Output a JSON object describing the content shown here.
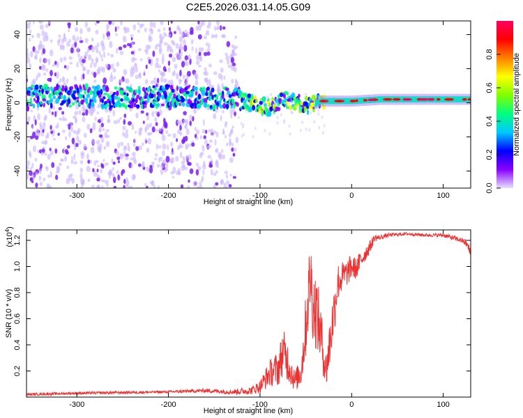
{
  "title": "C2E5.2026.031.14.05.G09",
  "chart_data": [
    {
      "type": "heatmap",
      "name": "spectrogram",
      "xlabel": "Height of straight line (km)",
      "ylabel": "Frequency (Hz)",
      "xlim": [
        -355,
        130
      ],
      "ylim": [
        -50,
        48
      ],
      "xticks": [
        -300,
        -200,
        -100,
        0,
        100
      ],
      "xtick_labels": [
        "-300",
        "-200",
        "-100",
        "0",
        "100"
      ],
      "yticks": [
        -40,
        -20,
        0,
        20,
        40
      ],
      "ytick_labels": [
        "-40",
        "-20",
        "0",
        "20",
        "40"
      ],
      "ridge": [
        {
          "x": -350,
          "freq": 4
        },
        {
          "x": -300,
          "freq": 4
        },
        {
          "x": -250,
          "freq": 3
        },
        {
          "x": -200,
          "freq": 4
        },
        {
          "x": -150,
          "freq": 2
        },
        {
          "x": -130,
          "freq": 3
        },
        {
          "x": -110,
          "freq": 0
        },
        {
          "x": -90,
          "freq": -3
        },
        {
          "x": -75,
          "freq": 2
        },
        {
          "x": -60,
          "freq": 0
        },
        {
          "x": -45,
          "freq": -2
        },
        {
          "x": -35,
          "freq": 1
        },
        {
          "x": -20,
          "freq": 1
        },
        {
          "x": 0,
          "freq": 1
        },
        {
          "x": 30,
          "freq": 2
        },
        {
          "x": 60,
          "freq": 2
        },
        {
          "x": 90,
          "freq": 2
        },
        {
          "x": 130,
          "freq": 2
        }
      ],
      "noise_extent": [
        -355,
        -125
      ]
    },
    {
      "type": "colorbar",
      "label": "Normalized spectral amplitude",
      "range": [
        0,
        1
      ],
      "ticks": [
        0.0,
        0.2,
        0.4,
        0.6,
        0.8
      ],
      "tick_labels": [
        "0.0",
        "0.2",
        "0.4",
        "0.6",
        "0.8"
      ],
      "colors": [
        "#e8e0ff",
        "#8a00ff",
        "#0000ff",
        "#00c8ff",
        "#00ff80",
        "#80ff00",
        "#ffff00",
        "#ff8000",
        "#ff0000",
        "#ff0060"
      ]
    },
    {
      "type": "line",
      "name": "snr",
      "color": "#ee3030",
      "xlabel": "Height of straight line (km)",
      "ylabel": "SNR (10 * v/v)",
      "scale_label": "(x10",
      "scale_exp": "4",
      "scale_close": ")",
      "xlim": [
        -355,
        130
      ],
      "ylim": [
        0,
        1.28
      ],
      "xticks": [
        -300,
        -200,
        -100,
        0,
        100
      ],
      "xtick_labels": [
        "-300",
        "-200",
        "-100",
        "0",
        "100"
      ],
      "yticks": [
        0.2,
        0.4,
        0.6,
        0.8,
        1.0,
        1.2
      ],
      "ytick_labels": [
        "0.2",
        "0.4",
        "0.6",
        "0.8",
        "1.0",
        "1.2"
      ],
      "x": [
        -355,
        -300,
        -250,
        -200,
        -160,
        -130,
        -110,
        -100,
        -90,
        -80,
        -75,
        -70,
        -62,
        -55,
        -50,
        -45,
        -42,
        -38,
        -33,
        -28,
        -25,
        -20,
        -15,
        -10,
        -5,
        0,
        5,
        10,
        15,
        20,
        25,
        30,
        40,
        60,
        80,
        100,
        110,
        120,
        125,
        130
      ],
      "y": [
        0.02,
        0.03,
        0.035,
        0.04,
        0.05,
        0.04,
        0.05,
        0.08,
        0.18,
        0.22,
        0.35,
        0.28,
        0.12,
        0.2,
        0.55,
        0.95,
        0.7,
        0.65,
        0.45,
        0.2,
        0.35,
        0.62,
        0.88,
        0.92,
        0.95,
        1.0,
        0.98,
        1.05,
        1.1,
        1.15,
        1.22,
        1.22,
        1.24,
        1.25,
        1.24,
        1.24,
        1.22,
        1.2,
        1.18,
        1.1
      ],
      "amp": [
        0.01,
        0.01,
        0.01,
        0.01,
        0.015,
        0.02,
        0.03,
        0.05,
        0.1,
        0.14,
        0.18,
        0.16,
        0.08,
        0.12,
        0.25,
        0.3,
        0.3,
        0.3,
        0.22,
        0.15,
        0.2,
        0.2,
        0.15,
        0.12,
        0.1,
        0.1,
        0.08,
        0.08,
        0.06,
        0.05,
        0.03,
        0.02,
        0.015,
        0.012,
        0.012,
        0.015,
        0.02,
        0.02,
        0.03,
        0.05
      ]
    }
  ]
}
